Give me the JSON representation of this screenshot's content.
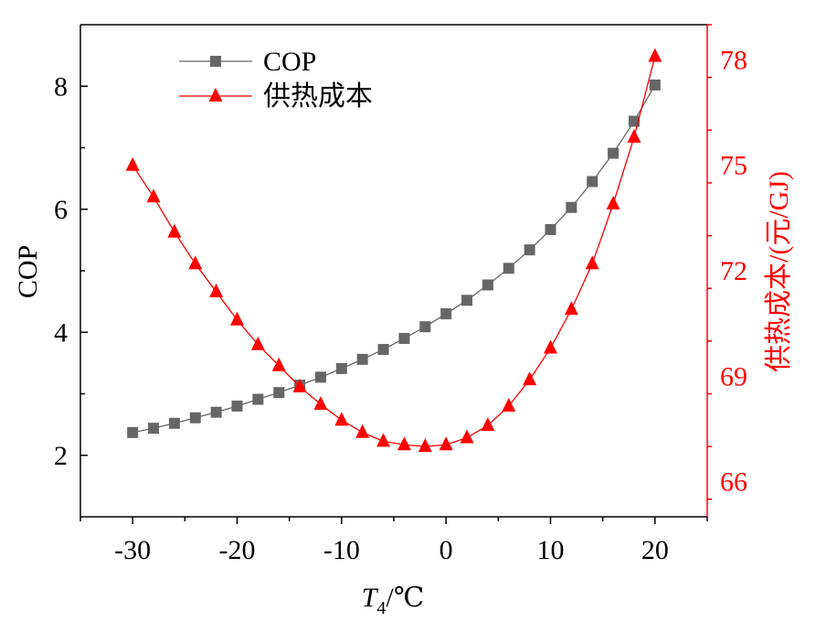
{
  "chart_data": {
    "type": "line",
    "x": [
      -30,
      -28,
      -26,
      -24,
      -22,
      -20,
      -18,
      -16,
      -14,
      -12,
      -10,
      -8,
      -6,
      -4,
      -2,
      0,
      2,
      4,
      6,
      8,
      10,
      12,
      14,
      16,
      18,
      20
    ],
    "series": [
      {
        "name": "COP",
        "axis": "left",
        "marker": "square",
        "color": "#666666",
        "values": [
          2.37,
          2.44,
          2.52,
          2.61,
          2.7,
          2.8,
          2.91,
          3.02,
          3.14,
          3.27,
          3.41,
          3.56,
          3.72,
          3.9,
          4.09,
          4.3,
          4.52,
          4.77,
          5.04,
          5.34,
          5.67,
          6.03,
          6.45,
          6.91,
          7.43,
          8.02
        ]
      },
      {
        "name": "供热成本",
        "axis": "right",
        "marker": "triangle",
        "color": "#ff0000",
        "values": [
          75.0,
          74.1,
          73.1,
          72.2,
          71.4,
          70.6,
          69.9,
          69.3,
          68.7,
          68.2,
          67.75,
          67.4,
          67.15,
          67.05,
          67.0,
          67.05,
          67.25,
          67.6,
          68.15,
          68.9,
          69.8,
          70.9,
          72.2,
          73.9,
          75.8,
          78.1
        ]
      }
    ],
    "xlabel_main": "T",
    "xlabel_sub": "4",
    "xlabel_unit": "/℃",
    "ylabel_left": "COP",
    "ylabel_right": "供热成本/(元/GJ)",
    "xlim": [
      -35,
      25
    ],
    "ylim_left": [
      1,
      9
    ],
    "ylim_right": [
      65,
      79
    ],
    "xticks": [
      -30,
      -20,
      -10,
      0,
      10,
      20
    ],
    "yticks_left": [
      2,
      4,
      6,
      8
    ],
    "yticks_right": [
      66,
      69,
      72,
      75,
      78
    ],
    "grid": false,
    "legend_position": "top-left",
    "left_axis_color": "#000000",
    "right_axis_color": "#ff0000"
  }
}
